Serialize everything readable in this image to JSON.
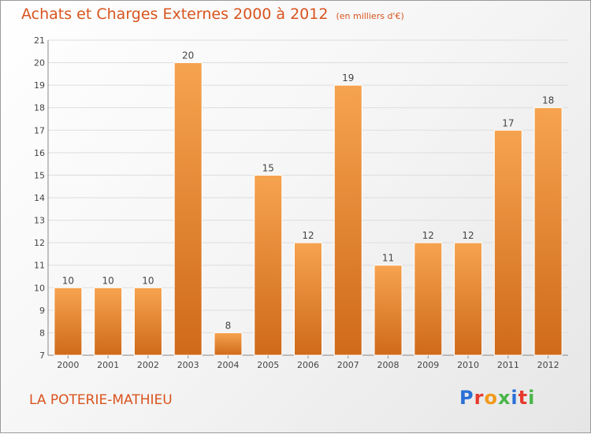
{
  "title": "Achats et Charges Externes 2000 à 2012",
  "subtitle": "(en milliers d'€)",
  "commune": "LA POTERIE-MATHIEU",
  "logo": {
    "text": "Proxiti"
  },
  "colors": {
    "bar_light": "#f6a34f",
    "bar_dark": "#cf6a1a",
    "title": "#d9531e",
    "grid": "#dddddd"
  },
  "chart_data": {
    "type": "bar",
    "categories": [
      "2000",
      "2001",
      "2002",
      "2003",
      "2004",
      "2005",
      "2006",
      "2007",
      "2008",
      "2009",
      "2010",
      "2011",
      "2012"
    ],
    "values": [
      10,
      10,
      10,
      20,
      8,
      15,
      12,
      19,
      11,
      12,
      12,
      17,
      18
    ],
    "ylim": [
      7,
      21
    ],
    "yticks": [
      7,
      8,
      9,
      10,
      11,
      12,
      13,
      14,
      15,
      16,
      17,
      18,
      19,
      20,
      21
    ],
    "grid": true,
    "legend": "none"
  }
}
